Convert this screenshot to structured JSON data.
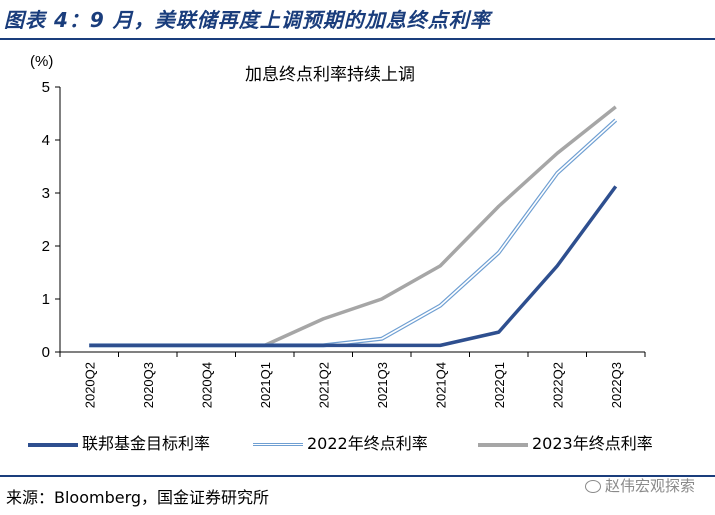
{
  "figure_title": "图表 4：9 月，美联储再度上调预期的加息终点利率",
  "source_text": "来源：Bloomberg，国金证券研究所",
  "watermark": "赵伟宏观探索",
  "colors": {
    "title": "#1a3d7c",
    "fed_target": "#2e4f8f",
    "end2022": "#6f9fd2",
    "end2023": "#a6a6a6"
  },
  "chart_data": {
    "type": "line",
    "title": "加息终点利率持续上调",
    "ylabel": "(%)",
    "xlabel": "",
    "ylim": [
      0,
      5
    ],
    "yticks": [
      0,
      1,
      2,
      3,
      4,
      5
    ],
    "grid": false,
    "legend_position": "bottom",
    "categories": [
      "2020Q2",
      "2020Q3",
      "2020Q4",
      "2021Q1",
      "2021Q2",
      "2021Q3",
      "2021Q4",
      "2022Q1",
      "2022Q2",
      "2022Q3"
    ],
    "series": [
      {
        "name": "联邦基金目标利率",
        "color": "#2e4f8f",
        "style": "solid",
        "values": [
          0.125,
          0.125,
          0.125,
          0.125,
          0.125,
          0.125,
          0.125,
          0.375,
          1.625,
          3.125
        ]
      },
      {
        "name": "2022年终点利率",
        "color": "#6f9fd2",
        "style": "double",
        "values": [
          0.125,
          0.125,
          0.125,
          0.125,
          0.125,
          0.25,
          0.875,
          1.875,
          3.375,
          4.375
        ]
      },
      {
        "name": "2023年终点利率",
        "color": "#a6a6a6",
        "style": "solid",
        "values": [
          0.125,
          0.125,
          0.125,
          0.125,
          0.625,
          1.0,
          1.625,
          2.75,
          3.75,
          4.625
        ]
      }
    ]
  }
}
